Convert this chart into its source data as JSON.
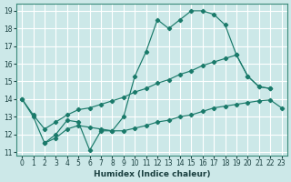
{
  "bg_color": "#cce8e8",
  "grid_color": "#ffffff",
  "line_color": "#1a7a6a",
  "xlabel": "Humidex (Indice chaleur)",
  "xlim": [
    -0.5,
    23.5
  ],
  "ylim": [
    10.8,
    19.4
  ],
  "xticks": [
    0,
    1,
    2,
    3,
    4,
    5,
    6,
    7,
    8,
    9,
    10,
    11,
    12,
    13,
    14,
    15,
    16,
    17,
    18,
    19,
    20,
    21,
    22,
    23
  ],
  "yticks": [
    11,
    12,
    13,
    14,
    15,
    16,
    17,
    18,
    19
  ],
  "curve_top_x": [
    0,
    1,
    2,
    3,
    4,
    5,
    6,
    7,
    8,
    9,
    10,
    11,
    12,
    13,
    14,
    15,
    16,
    17,
    18,
    19,
    20,
    21,
    22
  ],
  "curve_top_y": [
    14,
    13,
    11.5,
    12.0,
    12.8,
    12.7,
    11.1,
    12.2,
    12.2,
    13.0,
    15.3,
    16.7,
    18.5,
    18.0,
    18.5,
    19.0,
    19.0,
    18.8,
    18.2,
    16.5,
    15.3,
    14.7,
    14.6
  ],
  "curve_diag_x": [
    0,
    1,
    2,
    3,
    4,
    5,
    6,
    7,
    8,
    9,
    10,
    11,
    12,
    13,
    14,
    15,
    16,
    17,
    18,
    19,
    20,
    21,
    22
  ],
  "curve_diag_y": [
    14,
    13.1,
    12.3,
    12.7,
    13.1,
    13.4,
    13.5,
    13.7,
    13.9,
    14.1,
    14.4,
    14.6,
    14.9,
    15.1,
    15.4,
    15.6,
    15.9,
    16.1,
    16.3,
    16.5,
    15.3,
    14.7,
    14.6
  ],
  "curve_flat_x": [
    2,
    3,
    4,
    5,
    6,
    7,
    8,
    9,
    10,
    11,
    12,
    13,
    14,
    15,
    16,
    17,
    18,
    19,
    20,
    21,
    22,
    23
  ],
  "curve_flat_y": [
    11.5,
    11.8,
    12.3,
    12.5,
    12.4,
    12.3,
    12.2,
    12.2,
    12.35,
    12.5,
    12.7,
    12.8,
    13.0,
    13.1,
    13.3,
    13.5,
    13.6,
    13.7,
    13.8,
    13.9,
    13.95,
    13.5
  ]
}
